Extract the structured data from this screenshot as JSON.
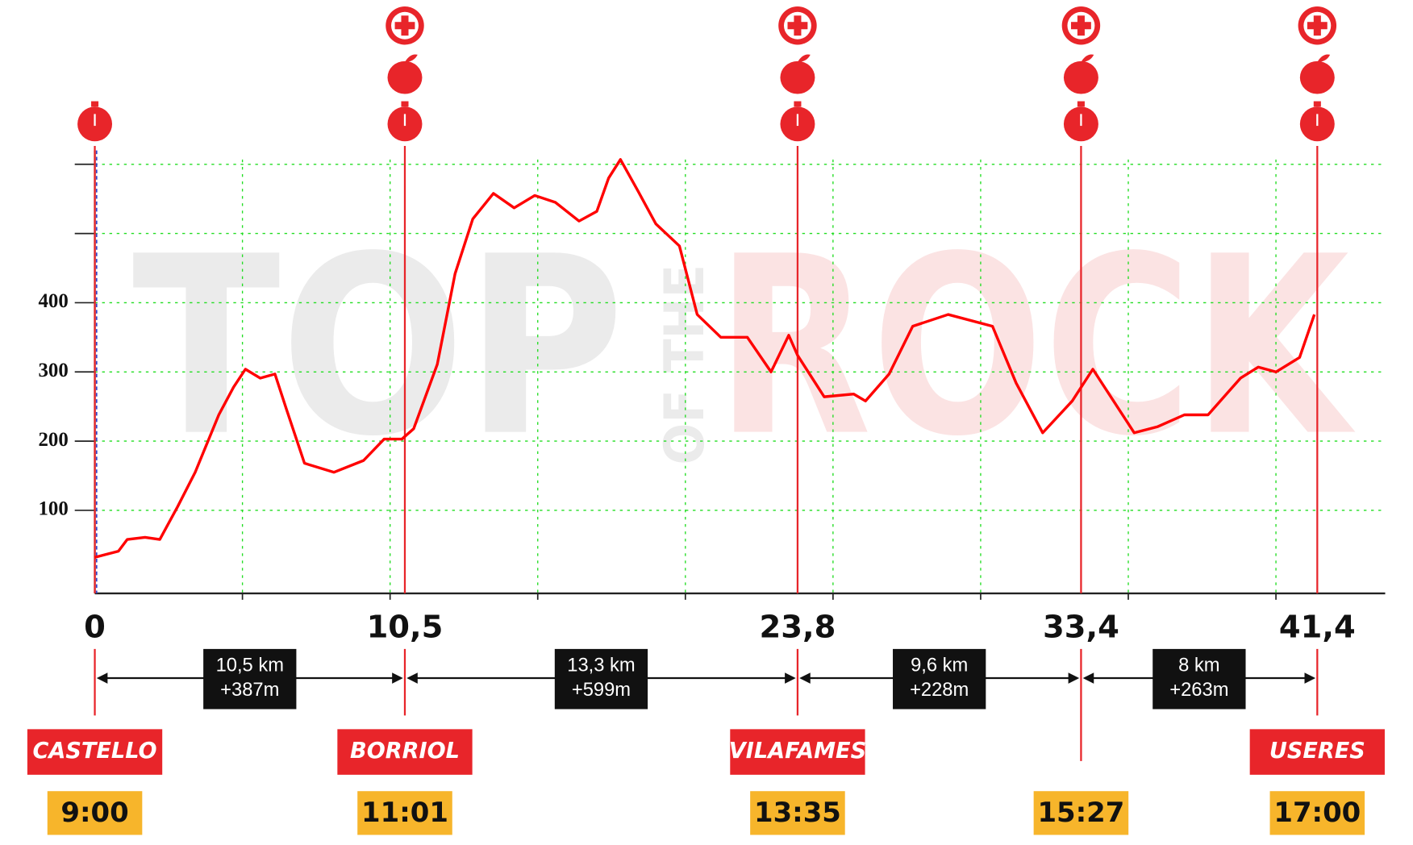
{
  "chart_data": {
    "type": "line",
    "color": "#ff0000",
    "watermark": [
      "TOP",
      "OF THE",
      "ROCK"
    ],
    "x": [
      0,
      0.8,
      1.1,
      1.7,
      2.2,
      2.8,
      3.4,
      4.2,
      4.7,
      5.1,
      5.6,
      6.1,
      6.5,
      7.1,
      8.1,
      9.1,
      9.8,
      10.4,
      10.8,
      11.6,
      12.2,
      12.8,
      13.5,
      14.2,
      14.9,
      15.6,
      16.4,
      17.0,
      17.4,
      17.8,
      18.4,
      19.0,
      19.8,
      20.4,
      21.2,
      22.1,
      22.9,
      23.5,
      23.8,
      24.7,
      25.7,
      26.1,
      26.9,
      27.7,
      28.9,
      30.4,
      31.2,
      32.1,
      33.1,
      33.8,
      34.5,
      35.2,
      36.0,
      36.9,
      37.7,
      38.8,
      39.4,
      40.0,
      40.8,
      41.3
    ],
    "values": [
      32,
      41,
      58,
      61,
      58,
      105,
      155,
      238,
      278,
      304,
      291,
      297,
      245,
      168,
      155,
      172,
      203,
      203,
      218,
      311,
      442,
      521,
      558,
      537,
      555,
      545,
      518,
      532,
      580,
      607,
      561,
      514,
      482,
      383,
      350,
      350,
      300,
      353,
      324,
      264,
      268,
      258,
      297,
      366,
      383,
      366,
      284,
      212,
      258,
      304,
      258,
      212,
      221,
      238,
      238,
      291,
      307,
      300,
      321,
      383
    ],
    "xlim": [
      0,
      43.7
    ],
    "ylim": [
      -20,
      620
    ],
    "xticks": [
      0,
      {
        "value": 10.5,
        "label": "10,5"
      },
      {
        "value": 23.8,
        "label": "23,8"
      },
      {
        "value": 33.4,
        "label": "33,4"
      },
      {
        "value": 41.4,
        "label": "41,4"
      }
    ],
    "yticks": [
      100,
      200,
      300,
      400
    ],
    "xgrid": [
      5,
      10,
      15,
      20,
      25,
      30,
      35,
      40
    ],
    "ygrid": [
      100,
      200,
      300,
      400,
      500,
      600
    ],
    "grid": true,
    "segments": [
      {
        "distance": "10,5 km",
        "gain": "+387m"
      },
      {
        "distance": "13,3 km",
        "gain": "+599m"
      },
      {
        "distance": "9,6 km",
        "gain": "+228m"
      },
      {
        "distance": "8 km",
        "gain": "+263m"
      }
    ],
    "checkpoints": [
      {
        "name": "CASTELLO",
        "time": "9:00"
      },
      {
        "name": "BORRIOL",
        "time": "11:01"
      },
      {
        "name": "VILAFAMES",
        "time": "13:35"
      },
      {
        "name": null,
        "time": "15:27"
      },
      {
        "name": "USERES",
        "time": "17:00"
      }
    ]
  }
}
